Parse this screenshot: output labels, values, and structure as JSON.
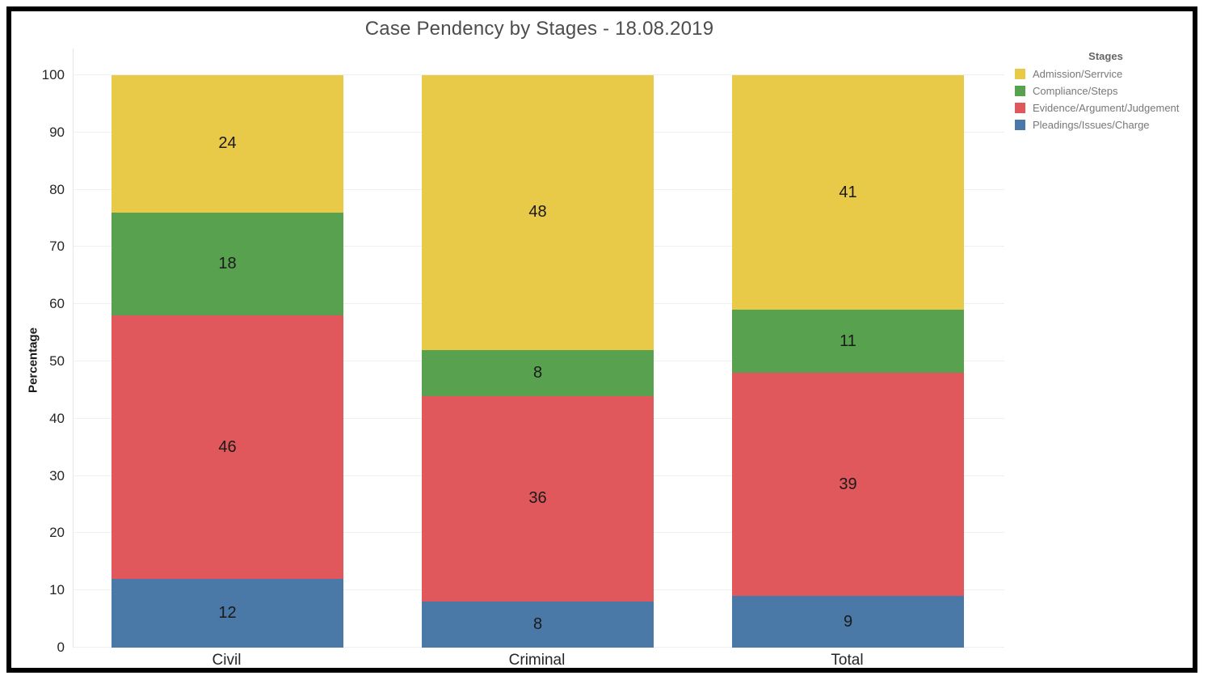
{
  "title": "Case Pendency by Stages - 18.08.2019",
  "chart_data": {
    "type": "bar",
    "stacked": true,
    "title": "Case Pendency by Stages - 18.08.2019",
    "xlabel": "",
    "ylabel": "Percentage",
    "ylim": [
      0,
      100
    ],
    "yticks": [
      0,
      10,
      20,
      30,
      40,
      50,
      60,
      70,
      80,
      90,
      100
    ],
    "grid": true,
    "categories": [
      "Civil",
      "Criminal",
      "Total"
    ],
    "series": [
      {
        "name": "Pleadings/Issues/Charge",
        "color": "#4A79A7",
        "values": [
          12,
          8,
          9
        ]
      },
      {
        "name": "Evidence/Argument/Judgement",
        "color": "#E0585B",
        "values": [
          46,
          36,
          39
        ]
      },
      {
        "name": "Compliance/Steps",
        "color": "#58A14E",
        "values": [
          18,
          8,
          11
        ]
      },
      {
        "name": "Admission/Serrvice",
        "color": "#E9C948",
        "values": [
          24,
          48,
          41
        ]
      }
    ],
    "legend": {
      "title": "Stages",
      "position": "top-right",
      "order_top_to_bottom": [
        "Admission/Serrvice",
        "Compliance/Steps",
        "Evidence/Argument/Judgement",
        "Pleadings/Issues/Charge"
      ]
    }
  }
}
